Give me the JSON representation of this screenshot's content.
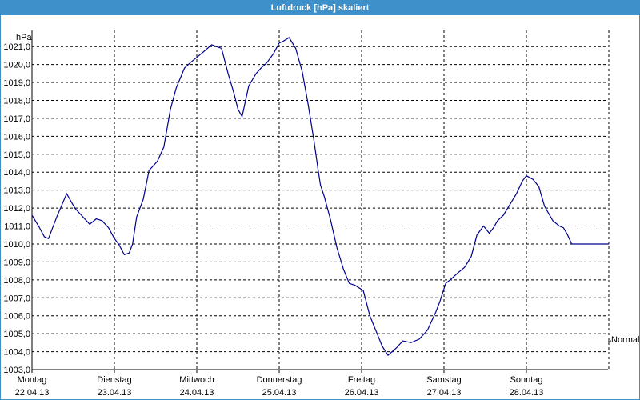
{
  "window": {
    "title": "Luftdruck [hPa] skaliert"
  },
  "colors": {
    "title_bar": "#3d90c9",
    "series": "#00008b",
    "grid": "#000000"
  },
  "chart_data": {
    "type": "line",
    "title": "Luftdruck [hPa] skaliert",
    "ylabel": "hPa",
    "ylim": [
      1003.0,
      1021.9
    ],
    "y_ticks": [
      "1003,0",
      "1004,0",
      "1005,0",
      "1006,0",
      "1007,0",
      "1008,0",
      "1009,0",
      "1010,0",
      "1011,0",
      "1012,0",
      "1013,0",
      "1014,0",
      "1015,0",
      "1016,0",
      "1017,0",
      "1018,0",
      "1019,0",
      "1020,0",
      "1021,0"
    ],
    "x_range_days": [
      0,
      7
    ],
    "x_ticks": [
      {
        "day": "Montag",
        "date": "22.04.13"
      },
      {
        "day": "Dienstag",
        "date": "23.04.13"
      },
      {
        "day": "Mittwoch",
        "date": "24.04.13"
      },
      {
        "day": "Donnerstag",
        "date": "25.04.13"
      },
      {
        "day": "Freitag",
        "date": "26.04.13"
      },
      {
        "day": "Samstag",
        "date": "27.04.13"
      },
      {
        "day": "Sonntag",
        "date": "28.04.13"
      }
    ],
    "reference_label": "Normal",
    "reference_value": 1004.6,
    "grid": true,
    "series": [
      {
        "x": [
          0,
          0.08,
          0.15,
          0.2,
          0.3,
          0.42,
          0.47,
          0.52,
          0.6,
          0.7,
          0.78,
          0.85,
          0.93,
          1.0,
          1.05,
          1.12,
          1.18,
          1.22,
          1.27,
          1.35,
          1.42,
          1.52,
          1.6,
          1.68,
          1.75,
          1.85,
          1.92,
          2.0,
          2.08,
          2.18,
          2.3,
          2.38,
          2.45,
          2.5,
          2.55,
          2.63,
          2.72,
          2.78,
          2.85,
          2.93,
          3.0,
          3.05,
          3.12,
          3.2,
          3.28,
          3.35,
          3.42,
          3.47,
          3.5,
          3.55,
          3.62,
          3.7,
          3.78,
          3.85,
          3.92,
          4.02,
          4.1,
          4.18,
          4.25,
          4.32,
          4.42,
          4.5,
          4.6,
          4.7,
          4.8,
          4.85,
          4.9,
          4.95,
          5.02,
          5.1,
          5.17,
          5.25,
          5.33,
          5.4,
          5.48,
          5.55,
          5.6,
          5.65,
          5.72,
          5.8,
          5.88,
          5.95,
          6.0,
          6.08,
          6.15,
          6.22,
          6.32,
          6.4,
          6.45,
          6.5,
          6.55,
          6.6,
          6.65,
          6.73,
          6.8,
          6.87,
          6.93,
          7.0
        ],
        "y": [
          1011.6,
          1011.0,
          1010.4,
          1010.3,
          1011.5,
          1012.8,
          1012.4,
          1012.0,
          1011.6,
          1011.1,
          1011.4,
          1011.3,
          1010.9,
          1010.3,
          1010.0,
          1009.4,
          1009.5,
          1010.0,
          1011.5,
          1012.5,
          1014.1,
          1014.6,
          1015.4,
          1017.5,
          1018.7,
          1019.8,
          1020.1,
          1020.4,
          1020.7,
          1021.1,
          1020.9,
          1019.5,
          1018.4,
          1017.5,
          1017.1,
          1018.8,
          1019.5,
          1019.8,
          1020.1,
          1020.6,
          1021.2,
          1021.3,
          1021.5,
          1020.9,
          1019.6,
          1017.8,
          1015.8,
          1014.2,
          1013.3,
          1012.6,
          1011.4,
          1009.8,
          1008.6,
          1007.8,
          1007.7,
          1007.4,
          1006.0,
          1005.1,
          1004.3,
          1003.8,
          1004.2,
          1004.6,
          1004.5,
          1004.7,
          1005.2,
          1005.7,
          1006.2,
          1006.8,
          1007.8,
          1008.1,
          1008.4,
          1008.7,
          1009.3,
          1010.5,
          1011.0,
          1010.6,
          1010.9,
          1011.3,
          1011.6,
          1012.2,
          1012.8,
          1013.5,
          1013.8,
          1013.6,
          1013.2,
          1012.1,
          1011.3,
          1011.0,
          1010.9,
          1010.5,
          1010.0,
          1010.0,
          1010.0,
          1010.0,
          1010.0,
          1010.0,
          1010.0,
          1010.0
        ]
      }
    ]
  }
}
